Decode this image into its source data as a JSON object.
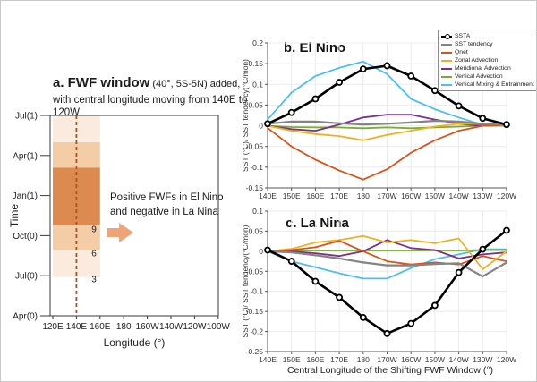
{
  "panel_a": {
    "title_bold": "a. FWF window",
    "title_rest": " (40°,  5S-5N) added,",
    "title_line2": "with central longitude moving from 140E to 120W",
    "ylabel": "Time",
    "xlabel": "Longitude (°)",
    "yticks": [
      "Jul(1)",
      "Apr(1)",
      "Jan(1)",
      "Oct(0)",
      "Jul(0)",
      "Apr(0)"
    ],
    "ytick_months": [
      15,
      12,
      9,
      6,
      3,
      0
    ],
    "xticks": [
      "120E",
      "140E",
      "160E",
      "180",
      "160W",
      "140W",
      "120W",
      "100W"
    ],
    "xtick_degs": [
      120,
      140,
      160,
      180,
      200,
      220,
      240,
      260
    ],
    "annotation_line1": "Positive FWFs in El Nino",
    "annotation_line2": "and negative in La Nina",
    "window": {
      "deg_from": 120,
      "deg_to": 160,
      "dashed_deg": 140,
      "bands": [
        {
          "from_month": 2.9,
          "to_month": 4.9,
          "shade": "light"
        },
        {
          "from_month": 4.9,
          "to_month": 6.8,
          "shade": "medium"
        },
        {
          "from_month": 6.8,
          "to_month": 11.1,
          "shade": "dark"
        },
        {
          "from_month": 11.1,
          "to_month": 13.0,
          "shade": "medium"
        },
        {
          "from_month": 13.0,
          "to_month": 15.0,
          "shade": "light"
        }
      ],
      "ramp_labels": [
        {
          "text": "9",
          "month": 6.5
        },
        {
          "text": "6",
          "month": 4.7
        },
        {
          "text": "3",
          "month": 2.75
        }
      ]
    },
    "colors": {
      "dark": "#DD8A50",
      "medium": "#F4CDA6",
      "light": "#FAEBDE",
      "dashed": "#A6532A",
      "arrow": "#F0A377"
    }
  },
  "chart_data": [
    {
      "type": "line",
      "panel": "b",
      "title": "b. El Nino",
      "xlabel": "",
      "ylabel": "SST (°C)/ SST tendency(°C/mon)",
      "categories": [
        "140E",
        "150E",
        "160E",
        "170E",
        "180",
        "170W",
        "160W",
        "150W",
        "140W",
        "130W",
        "120W"
      ],
      "ylim": [
        -0.15,
        0.2
      ],
      "yticks": [
        0.2,
        0.15,
        0.1,
        0.05,
        0,
        -0.05,
        -0.1,
        -0.15
      ],
      "grid": true,
      "legend_position": "top-right",
      "series": [
        {
          "name": "SSTA",
          "color": "#000000",
          "marker": "circle",
          "width": 2.6,
          "values": [
            0.005,
            0.032,
            0.065,
            0.105,
            0.137,
            0.145,
            0.12,
            0.085,
            0.048,
            0.018,
            0.003
          ]
        },
        {
          "name": "SST tendency",
          "color": "#848484",
          "width": 2.2,
          "values": [
            0.005,
            0.01,
            0.01,
            0.006,
            0.003,
            0.005,
            0.008,
            0.012,
            0.01,
            0.005,
            0.002
          ]
        },
        {
          "name": "Qnet",
          "color": "#D95319",
          "width": 1.8,
          "values": [
            -0.005,
            -0.05,
            -0.082,
            -0.108,
            -0.13,
            -0.105,
            -0.065,
            -0.035,
            -0.012,
            0,
            0.002
          ]
        },
        {
          "name": "Zonal Advection",
          "color": "#EDB120",
          "width": 1.8,
          "values": [
            0,
            -0.012,
            -0.02,
            -0.025,
            -0.035,
            -0.022,
            -0.012,
            -0.002,
            0.005,
            0.005,
            0
          ]
        },
        {
          "name": "Meridional Advection",
          "color": "#7E2F8E",
          "width": 1.8,
          "values": [
            0,
            -0.008,
            -0.012,
            0.003,
            0.02,
            0.027,
            0.027,
            0.015,
            0.005,
            0,
            0.002
          ]
        },
        {
          "name": "Vertical Advection",
          "color": "#77AC30",
          "width": 1.8,
          "values": [
            0,
            -0.003,
            -0.004,
            -0.004,
            -0.006,
            -0.004,
            -0.006,
            -0.004,
            -0.002,
            0,
            0
          ]
        },
        {
          "name": "Vertical Mixing & Entrainment",
          "color": "#4DBEEE",
          "width": 1.8,
          "values": [
            0.015,
            0.08,
            0.12,
            0.14,
            0.155,
            0.125,
            0.065,
            0.04,
            0.02,
            0.002,
            0
          ]
        }
      ]
    },
    {
      "type": "line",
      "panel": "c",
      "title": "c. La Nina",
      "xlabel": "Central Longitude of the Shifting FWF Window (°)",
      "ylabel": "SST (°C)/ SST tendency(°C/mon)",
      "categories": [
        "140E",
        "150E",
        "160E",
        "170E",
        "180",
        "170W",
        "160W",
        "150W",
        "140W",
        "130W",
        "120W"
      ],
      "ylim": [
        -0.25,
        0.1
      ],
      "yticks": [
        0.1,
        0.05,
        0,
        -0.05,
        -0.1,
        -0.15,
        -0.2,
        -0.25
      ],
      "grid": true,
      "legend_position": "none",
      "series": [
        {
          "name": "SSTA",
          "color": "#000000",
          "marker": "circle",
          "width": 2.6,
          "values": [
            0.003,
            -0.025,
            -0.075,
            -0.115,
            -0.165,
            -0.205,
            -0.18,
            -0.135,
            -0.053,
            0.005,
            0.052
          ]
        },
        {
          "name": "SST tendency",
          "color": "#848484",
          "width": 2.2,
          "values": [
            0,
            -0.003,
            -0.01,
            -0.018,
            -0.028,
            -0.035,
            -0.035,
            -0.032,
            -0.03,
            -0.063,
            -0.028
          ]
        },
        {
          "name": "Qnet",
          "color": "#D95319",
          "width": 1.8,
          "values": [
            0,
            0.003,
            0.01,
            0.026,
            0,
            -0.025,
            -0.033,
            -0.028,
            -0.033,
            -0.012,
            -0.025
          ]
        },
        {
          "name": "Zonal Advection",
          "color": "#EDB120",
          "width": 1.8,
          "values": [
            0,
            0.006,
            0.022,
            0.028,
            0.038,
            0.022,
            0.028,
            0.02,
            0.032,
            -0.045,
            0
          ]
        },
        {
          "name": "Meridional Advection",
          "color": "#7E2F8E",
          "width": 1.8,
          "values": [
            0,
            0,
            -0.005,
            -0.012,
            0,
            0.028,
            0.008,
            0.003,
            -0.018,
            -0.008,
            -0.003
          ]
        },
        {
          "name": "Vertical Advection",
          "color": "#77AC30",
          "width": 1.8,
          "values": [
            0.002,
            0.002,
            0.002,
            0.002,
            0.002,
            0.002,
            0.002,
            0.002,
            0.002,
            0.003,
            0.003
          ]
        },
        {
          "name": "Vertical Mixing & Entrainment",
          "color": "#4DBEEE",
          "width": 1.8,
          "values": [
            0,
            -0.025,
            -0.04,
            -0.055,
            -0.068,
            -0.068,
            -0.042,
            -0.02,
            -0.008,
            0.005,
            0.005
          ]
        }
      ]
    }
  ]
}
